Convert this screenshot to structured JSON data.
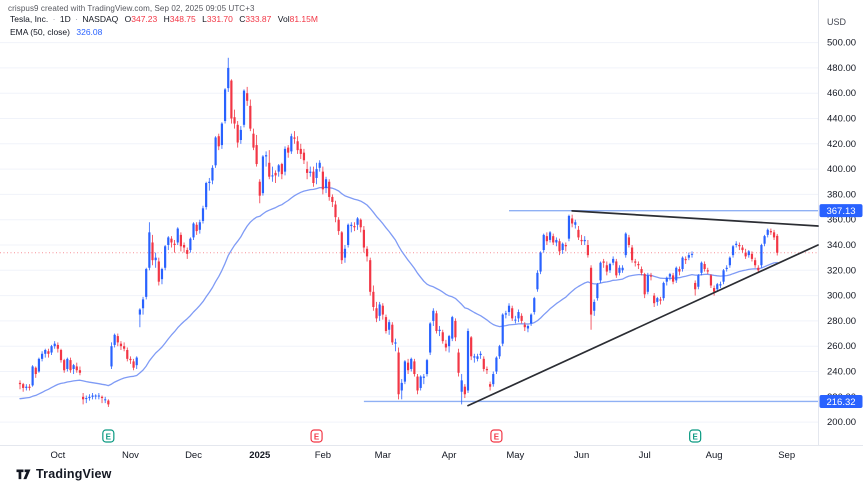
{
  "attribution": "crispus9 created with TradingView.com, Sep 02, 2025 09:05 UTC+3",
  "header": {
    "symbol": "Tesla, Inc.",
    "separator": "·",
    "timeframe": "1D",
    "exchange": "NASDAQ",
    "o_label": "O",
    "o_value": "347.23",
    "h_label": "H",
    "h_value": "348.75",
    "l_label": "L",
    "l_value": "331.70",
    "c_label": "C",
    "c_value": "333.87",
    "vol_label": "Vol",
    "vol_value": "81.15M",
    "indicator_label": "EMA (50, close)",
    "indicator_value": "326.08"
  },
  "watermark": {
    "text": "TradingView"
  },
  "colors": {
    "up_candle": "#2962ff",
    "down_candle": "#f23645",
    "ema_line": "#7f9bf5",
    "horizontal_ray": "#8fb0f4",
    "trendline": "#2b2d33",
    "last_price_line": "#f23645",
    "badge_bg": "#2962ff",
    "badge_text": "#ffffff",
    "grid": "#f0f3fa",
    "axis_border": "#e4e7ee",
    "axis_text": "#131722",
    "earnings_green": "#089981",
    "earnings_red": "#f23645"
  },
  "price_axis": {
    "currency": "USD",
    "tick_min": 200,
    "tick_max": 500,
    "tick_step": 20,
    "badges": [
      {
        "value": "367.13",
        "price": 367.13
      },
      {
        "value": "216.32",
        "price": 216.32
      }
    ]
  },
  "time_axis": {
    "labels": [
      {
        "text": "Oct",
        "index": 12
      },
      {
        "text": "Nov",
        "index": 35
      },
      {
        "text": "Dec",
        "index": 55
      },
      {
        "text": "2025",
        "index": 76,
        "bold": true
      },
      {
        "text": "Feb",
        "index": 96
      },
      {
        "text": "Mar",
        "index": 115
      },
      {
        "text": "Apr",
        "index": 136
      },
      {
        "text": "May",
        "index": 157
      },
      {
        "text": "Jun",
        "index": 178
      },
      {
        "text": "Jul",
        "index": 198
      },
      {
        "text": "Aug",
        "index": 220
      },
      {
        "text": "Sep",
        "index": 243
      }
    ],
    "earnings_markers": [
      {
        "letter": "E",
        "index": 28,
        "tone": "green"
      },
      {
        "letter": "E",
        "index": 94,
        "tone": "red"
      },
      {
        "letter": "E",
        "index": 151,
        "tone": "red"
      },
      {
        "letter": "E",
        "index": 214,
        "tone": "green"
      }
    ]
  },
  "chart_data": {
    "type": "candlestick",
    "title": "Tesla, Inc. · 1D · NASDAQ",
    "ylabel": "USD",
    "ylim": [
      192,
      512
    ],
    "range": "Sep 2024 - Sep 2025 (daily)",
    "grid": "horizontal",
    "last_close": 333.87,
    "ema_period": 50,
    "ema_last_value": 326.08,
    "overlays": {
      "horizontal_rays": [
        {
          "price": 367.13,
          "start_index": 155
        },
        {
          "price": 216.32,
          "start_index": 109
        }
      ],
      "trendlines": [
        {
          "i1": 175,
          "p1": 367.0,
          "i2": 253,
          "p2": 355.0
        },
        {
          "i1": 142,
          "p1": 213.0,
          "i2": 253,
          "p2": 340.0
        }
      ],
      "last_price_line": {
        "price": 333.87
      }
    },
    "candles_format": [
      "open",
      "high",
      "low",
      "close"
    ],
    "candles": [
      [
        231,
        233,
        226,
        230
      ],
      [
        230,
        231,
        224,
        227
      ],
      [
        227,
        230,
        225,
        228
      ],
      [
        228,
        230,
        225,
        227
      ],
      [
        229,
        245,
        228,
        244
      ],
      [
        243,
        244,
        235,
        238
      ],
      [
        240,
        251,
        239,
        250
      ],
      [
        250,
        256,
        248,
        254
      ],
      [
        254,
        258,
        251,
        257
      ],
      [
        256,
        258,
        251,
        254
      ],
      [
        255,
        261,
        253,
        260
      ],
      [
        260,
        264,
        258,
        262
      ],
      [
        261,
        263,
        255,
        258
      ],
      [
        257,
        258,
        247,
        249
      ],
      [
        249,
        250,
        239,
        241
      ],
      [
        242,
        251,
        240,
        250
      ],
      [
        249,
        251,
        239,
        241
      ],
      [
        242,
        246,
        238,
        245
      ],
      [
        244,
        247,
        239,
        241
      ],
      [
        241,
        244,
        237,
        239
      ],
      [
        220,
        223,
        214,
        218
      ],
      [
        219,
        221,
        215,
        219
      ],
      [
        219,
        222,
        217,
        220
      ],
      [
        220,
        223,
        218,
        221
      ],
      [
        221,
        222,
        218,
        221
      ],
      [
        221,
        223,
        218,
        221
      ],
      [
        220,
        221,
        215,
        219
      ],
      [
        218,
        220,
        215,
        218
      ],
      [
        217,
        218,
        212,
        214
      ],
      [
        244,
        263,
        242,
        260
      ],
      [
        261,
        270,
        259,
        269
      ],
      [
        268,
        270,
        260,
        263
      ],
      [
        262,
        264,
        257,
        260
      ],
      [
        260,
        263,
        256,
        258
      ],
      [
        257,
        259,
        248,
        250
      ],
      [
        250,
        252,
        246,
        249
      ],
      [
        248,
        250,
        241,
        243
      ],
      [
        245,
        252,
        242,
        251
      ],
      [
        285,
        290,
        275,
        289
      ],
      [
        290,
        299,
        285,
        297
      ],
      [
        299,
        322,
        297,
        321
      ],
      [
        322,
        358,
        320,
        350
      ],
      [
        342,
        348,
        324,
        328
      ],
      [
        328,
        334,
        322,
        330
      ],
      [
        327,
        330,
        308,
        311
      ],
      [
        313,
        322,
        309,
        321
      ],
      [
        322,
        340,
        320,
        339
      ],
      [
        340,
        347,
        336,
        346
      ],
      [
        345,
        347,
        338,
        342
      ],
      [
        341,
        344,
        334,
        340
      ],
      [
        342,
        354,
        340,
        353
      ],
      [
        348,
        350,
        335,
        339
      ],
      [
        340,
        342,
        334,
        338
      ],
      [
        336,
        338,
        329,
        333
      ],
      [
        336,
        346,
        334,
        345
      ],
      [
        346,
        358,
        344,
        357
      ],
      [
        356,
        358,
        348,
        351
      ],
      [
        352,
        360,
        349,
        358
      ],
      [
        359,
        371,
        357,
        369
      ],
      [
        370,
        390,
        368,
        389
      ],
      [
        389,
        393,
        383,
        390
      ],
      [
        391,
        403,
        388,
        401
      ],
      [
        403,
        426,
        401,
        425
      ],
      [
        426,
        428,
        415,
        418
      ],
      [
        419,
        437,
        416,
        436
      ],
      [
        438,
        464,
        436,
        463
      ],
      [
        464,
        488,
        461,
        480
      ],
      [
        470,
        471,
        436,
        440
      ],
      [
        441,
        447,
        432,
        436
      ],
      [
        435,
        438,
        417,
        421
      ],
      [
        423,
        434,
        420,
        431
      ],
      [
        435,
        463,
        433,
        462
      ],
      [
        460,
        465,
        450,
        454
      ],
      [
        450,
        455,
        430,
        432
      ],
      [
        428,
        432,
        415,
        417
      ],
      [
        419,
        427,
        402,
        404
      ],
      [
        390,
        392,
        373,
        379
      ],
      [
        381,
        411,
        379,
        410
      ],
      [
        410,
        414,
        402,
        411
      ],
      [
        405,
        415,
        392,
        394
      ],
      [
        395,
        402,
        390,
        395
      ],
      [
        397,
        399,
        389,
        395
      ],
      [
        398,
        404,
        394,
        403
      ],
      [
        404,
        405,
        392,
        396
      ],
      [
        398,
        418,
        395,
        416
      ],
      [
        417,
        419,
        409,
        413
      ],
      [
        414,
        428,
        412,
        426
      ],
      [
        425,
        430,
        420,
        424
      ],
      [
        422,
        426,
        412,
        415
      ],
      [
        416,
        420,
        408,
        412
      ],
      [
        413,
        416,
        404,
        407
      ],
      [
        400,
        406,
        392,
        397
      ],
      [
        397,
        402,
        394,
        398
      ],
      [
        398,
        402,
        386,
        389
      ],
      [
        393,
        405,
        388,
        400
      ],
      [
        401,
        407,
        398,
        405
      ],
      [
        398,
        402,
        380,
        384
      ],
      [
        385,
        394,
        381,
        392
      ],
      [
        390,
        392,
        375,
        378
      ],
      [
        378,
        380,
        370,
        374
      ],
      [
        372,
        375,
        358,
        362
      ],
      [
        360,
        362,
        348,
        351
      ],
      [
        350,
        351,
        325,
        328
      ],
      [
        330,
        340,
        326,
        337
      ],
      [
        340,
        357,
        338,
        356
      ],
      [
        355,
        358,
        350,
        356
      ],
      [
        355,
        358,
        351,
        354
      ],
      [
        356,
        362,
        352,
        361
      ],
      [
        360,
        361,
        350,
        354
      ],
      [
        352,
        355,
        334,
        338
      ],
      [
        337,
        339,
        327,
        331
      ],
      [
        328,
        330,
        300,
        303
      ],
      [
        303,
        308,
        288,
        291
      ],
      [
        290,
        295,
        279,
        282
      ],
      [
        284,
        295,
        280,
        293
      ],
      [
        292,
        294,
        281,
        285
      ],
      [
        283,
        285,
        270,
        272
      ],
      [
        273,
        281,
        269,
        279
      ],
      [
        277,
        279,
        261,
        263
      ],
      [
        262,
        266,
        256,
        263
      ],
      [
        255,
        259,
        218,
        222
      ],
      [
        225,
        234,
        218,
        231
      ],
      [
        232,
        249,
        230,
        248
      ],
      [
        247,
        250,
        238,
        241
      ],
      [
        242,
        251,
        240,
        250
      ],
      [
        248,
        250,
        236,
        238
      ],
      [
        236,
        238,
        222,
        225
      ],
      [
        227,
        237,
        225,
        236
      ],
      [
        235,
        238,
        230,
        236
      ],
      [
        238,
        250,
        236,
        249
      ],
      [
        255,
        279,
        253,
        278
      ],
      [
        280,
        290,
        276,
        288
      ],
      [
        286,
        288,
        270,
        272
      ],
      [
        272,
        276,
        268,
        273
      ],
      [
        271,
        273,
        262,
        264
      ],
      [
        262,
        265,
        256,
        259
      ],
      [
        260,
        269,
        255,
        268
      ],
      [
        266,
        284,
        264,
        283
      ],
      [
        280,
        282,
        264,
        267
      ],
      [
        255,
        258,
        236,
        239
      ],
      [
        224,
        238,
        214,
        233
      ],
      [
        228,
        230,
        219,
        222
      ],
      [
        225,
        274,
        223,
        272
      ],
      [
        267,
        268,
        249,
        252
      ],
      [
        251,
        254,
        247,
        252
      ],
      [
        250,
        254,
        248,
        252
      ],
      [
        253,
        256,
        250,
        254
      ],
      [
        250,
        252,
        240,
        242
      ],
      [
        242,
        244,
        238,
        241
      ],
      [
        230,
        232,
        225,
        228
      ],
      [
        230,
        240,
        228,
        238
      ],
      [
        240,
        252,
        238,
        251
      ],
      [
        252,
        261,
        250,
        260
      ],
      [
        262,
        286,
        260,
        285
      ],
      [
        285,
        288,
        282,
        286
      ],
      [
        287,
        294,
        284,
        292
      ],
      [
        290,
        292,
        280,
        282
      ],
      [
        281,
        284,
        278,
        281
      ],
      [
        282,
        289,
        279,
        287
      ],
      [
        284,
        286,
        278,
        280
      ],
      [
        277,
        279,
        272,
        275
      ],
      [
        274,
        277,
        271,
        276
      ],
      [
        278,
        286,
        276,
        285
      ],
      [
        287,
        299,
        285,
        298
      ],
      [
        305,
        320,
        303,
        318
      ],
      [
        319,
        335,
        317,
        334
      ],
      [
        336,
        349,
        334,
        348
      ],
      [
        347,
        350,
        340,
        343
      ],
      [
        344,
        351,
        342,
        350
      ],
      [
        347,
        349,
        340,
        342
      ],
      [
        342,
        346,
        339,
        344
      ],
      [
        343,
        345,
        332,
        335
      ],
      [
        336,
        342,
        333,
        341
      ],
      [
        340,
        342,
        335,
        339
      ],
      [
        345,
        364,
        343,
        363
      ],
      [
        361,
        364,
        354,
        357
      ],
      [
        356,
        360,
        353,
        358
      ],
      [
        352,
        355,
        344,
        346
      ],
      [
        344,
        348,
        340,
        343
      ],
      [
        343,
        347,
        340,
        344
      ],
      [
        340,
        344,
        330,
        332
      ],
      [
        322,
        324,
        273,
        285
      ],
      [
        288,
        297,
        284,
        295
      ],
      [
        298,
        310,
        296,
        309
      ],
      [
        312,
        327,
        310,
        326
      ],
      [
        327,
        329,
        322,
        326
      ],
      [
        324,
        327,
        316,
        319
      ],
      [
        320,
        326,
        318,
        325
      ],
      [
        326,
        331,
        324,
        329
      ],
      [
        327,
        329,
        314,
        316
      ],
      [
        318,
        324,
        316,
        322
      ],
      [
        320,
        324,
        318,
        322
      ],
      [
        332,
        350,
        330,
        349
      ],
      [
        346,
        348,
        338,
        340
      ],
      [
        338,
        340,
        326,
        328
      ],
      [
        327,
        329,
        323,
        326
      ],
      [
        325,
        327,
        321,
        324
      ],
      [
        321,
        323,
        316,
        318
      ],
      [
        317,
        318,
        298,
        301
      ],
      [
        303,
        318,
        301,
        316
      ],
      [
        316,
        318,
        312,
        315
      ],
      [
        300,
        302,
        291,
        294
      ],
      [
        295,
        299,
        292,
        298
      ],
      [
        297,
        299,
        293,
        296
      ],
      [
        298,
        311,
        296,
        310
      ],
      [
        311,
        315,
        308,
        314
      ],
      [
        315,
        318,
        312,
        317
      ],
      [
        316,
        318,
        309,
        311
      ],
      [
        312,
        323,
        310,
        322
      ],
      [
        321,
        323,
        316,
        319
      ],
      [
        321,
        331,
        319,
        330
      ],
      [
        329,
        331,
        325,
        328
      ],
      [
        330,
        334,
        328,
        332
      ],
      [
        333,
        335,
        330,
        333
      ],
      [
        310,
        312,
        300,
        305
      ],
      [
        307,
        317,
        305,
        316
      ],
      [
        318,
        327,
        316,
        326
      ],
      [
        325,
        327,
        319,
        321
      ],
      [
        320,
        322,
        317,
        319
      ],
      [
        316,
        317,
        306,
        308
      ],
      [
        306,
        308,
        300,
        303
      ],
      [
        305,
        310,
        303,
        309
      ],
      [
        308,
        311,
        306,
        309
      ],
      [
        311,
        321,
        309,
        320
      ],
      [
        321,
        324,
        319,
        322
      ],
      [
        324,
        331,
        322,
        330
      ],
      [
        332,
        340,
        330,
        339
      ],
      [
        340,
        343,
        338,
        341
      ],
      [
        340,
        342,
        336,
        339
      ],
      [
        338,
        340,
        334,
        336
      ],
      [
        334,
        337,
        329,
        331
      ],
      [
        332,
        336,
        330,
        335
      ],
      [
        333,
        335,
        327,
        329
      ],
      [
        328,
        330,
        322,
        324
      ],
      [
        322,
        324,
        318,
        320
      ],
      [
        324,
        341,
        322,
        340
      ],
      [
        341,
        348,
        339,
        347
      ],
      [
        348,
        353,
        346,
        352
      ],
      [
        351,
        353,
        348,
        350
      ],
      [
        350,
        352,
        344,
        346
      ],
      [
        347.23,
        348.75,
        331.7,
        333.87
      ]
    ]
  }
}
